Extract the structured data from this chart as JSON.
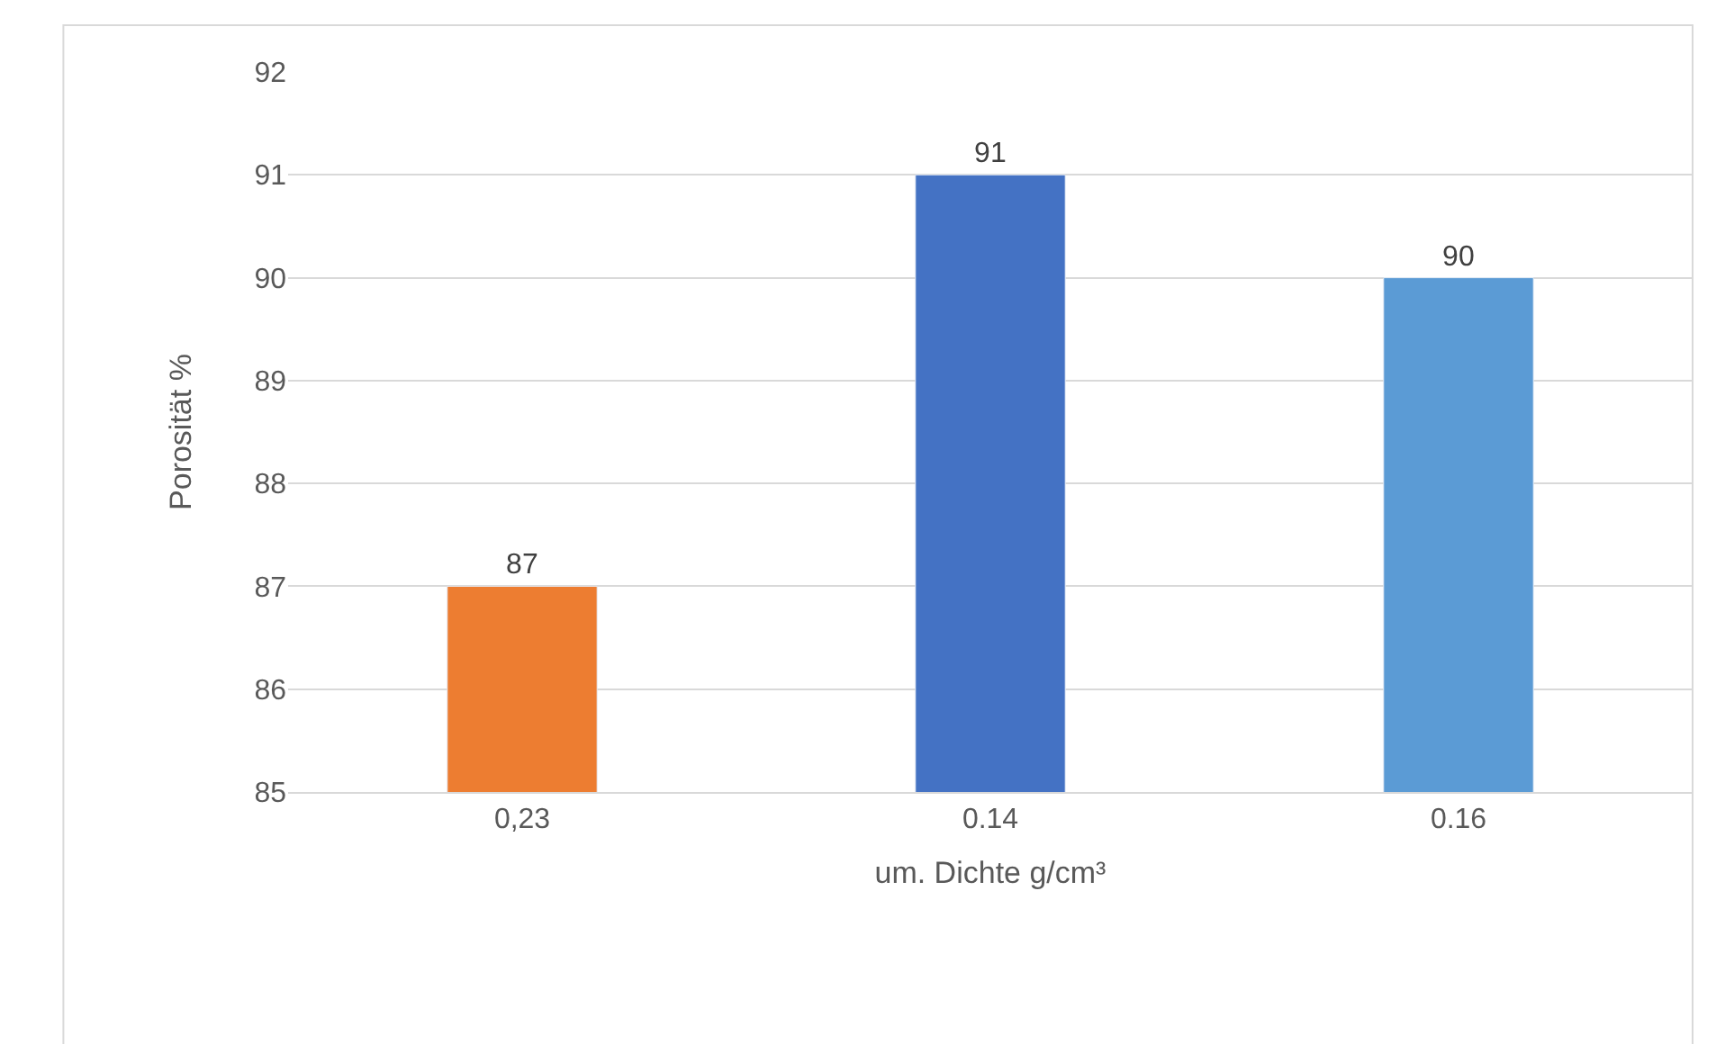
{
  "chart_data": {
    "type": "bar",
    "categories": [
      "0,23",
      "0.14",
      "0.16"
    ],
    "values": [
      87,
      91,
      90
    ],
    "colors": [
      "#ed7d31",
      "#4472c4",
      "#5b9bd5"
    ],
    "xlabel": "um. Dichte g/cm³",
    "ylabel": "Porosität %",
    "ylim": [
      85,
      92
    ],
    "yticks": [
      85,
      86,
      87,
      88,
      89,
      90,
      91,
      92
    ],
    "grid": "y",
    "data_labels": true,
    "legend": false
  }
}
